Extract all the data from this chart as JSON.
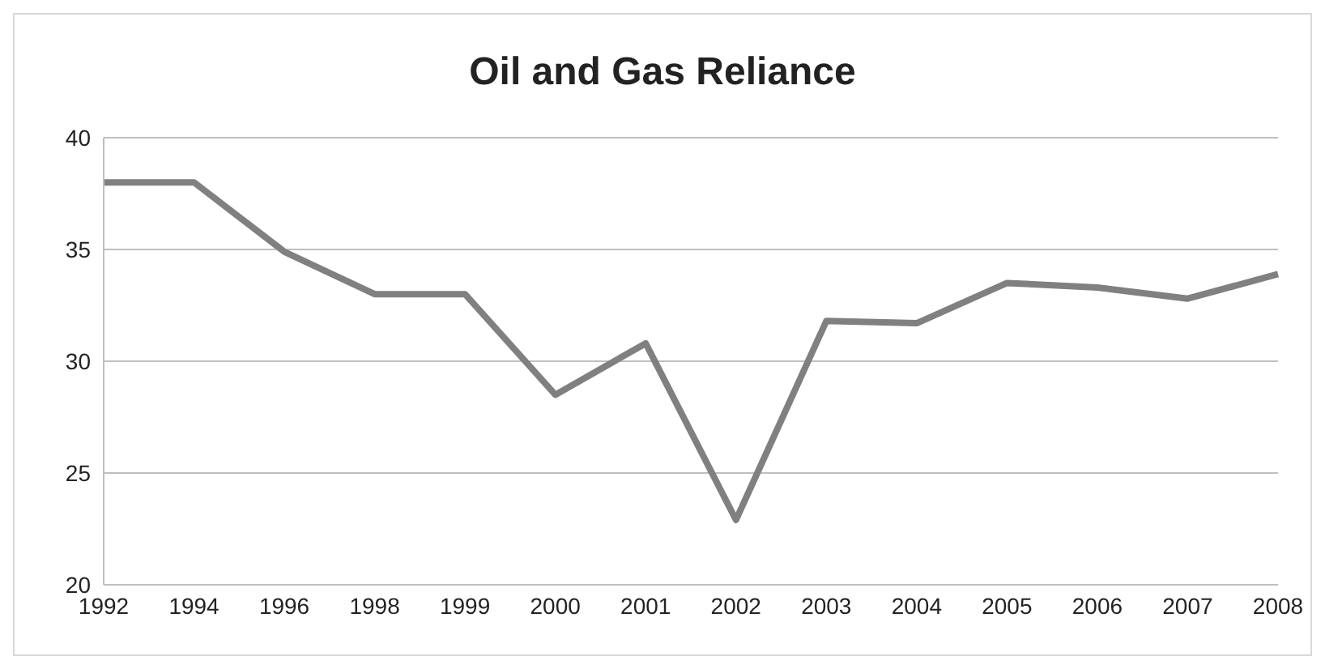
{
  "chart_data": {
    "type": "line",
    "title": "Oil and Gas Reliance",
    "categories": [
      "1992",
      "1994",
      "1996",
      "1998",
      "1999",
      "2000",
      "2001",
      "2002",
      "2003",
      "2004",
      "2005",
      "2006",
      "2007",
      "2008"
    ],
    "series": [
      {
        "color": "#808080",
        "values": [
          38,
          38,
          34.9,
          33,
          33,
          28.5,
          30.8,
          22.9,
          31.8,
          31.7,
          33.5,
          33.3,
          32.8,
          33.9
        ]
      }
    ],
    "ylim": [
      20,
      40
    ],
    "yticks": [
      20,
      25,
      30,
      35,
      40
    ],
    "grid": "y",
    "legend": false,
    "marker": "none",
    "line_style": "solid"
  }
}
